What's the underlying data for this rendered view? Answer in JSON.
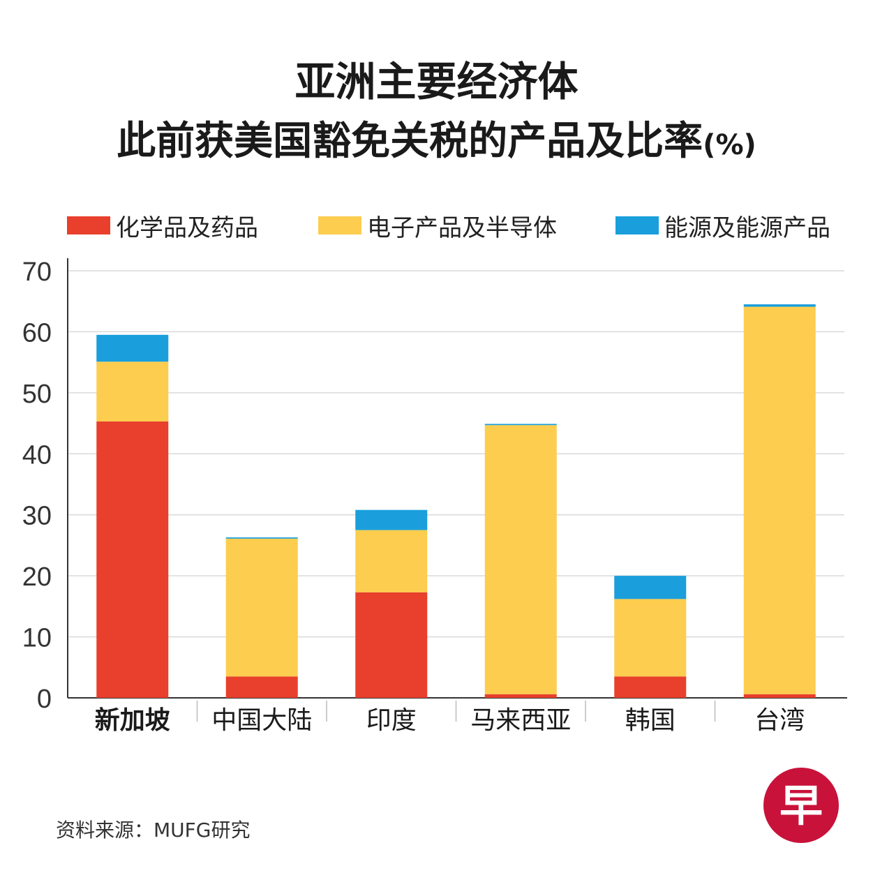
{
  "header": {
    "title_line1": "亚洲主要经济体",
    "title_line2": "此前获美国豁免关税的产品及比率",
    "unit": "(%)"
  },
  "source": "资料来源：MUFG研究",
  "logo": {
    "char": "早",
    "color": "#c8123a"
  },
  "colors": {
    "chemicals": "#e8402c",
    "electronics": "#fccd4e",
    "energy": "#1a9fdc",
    "grid": "#d9d9d9",
    "axis": "#333333"
  },
  "chart_data": {
    "type": "bar",
    "stacked": true,
    "title": "亚洲主要经济体 此前获美国豁免关税的产品及比率 (%)",
    "xlabel": "",
    "ylabel": "",
    "ylim": [
      0,
      70
    ],
    "yticks": [
      0,
      10,
      20,
      30,
      40,
      50,
      60,
      70
    ],
    "grid": true,
    "legend_position": "top",
    "categories": [
      "新加坡",
      "中国大陆",
      "印度",
      "马来西亚",
      "韩国",
      "台湾"
    ],
    "highlight_category": "新加坡",
    "series": [
      {
        "name": "化学品及药品",
        "key": "chemicals",
        "values": [
          45.3,
          3.5,
          17.3,
          0.6,
          3.5,
          0.6
        ]
      },
      {
        "name": "电子产品及半导体",
        "key": "electronics",
        "values": [
          9.8,
          22.6,
          10.2,
          44.1,
          12.7,
          63.5
        ]
      },
      {
        "name": "能源及能源产品",
        "key": "energy",
        "values": [
          4.4,
          0.2,
          3.3,
          0.2,
          3.8,
          0.4
        ]
      }
    ]
  }
}
